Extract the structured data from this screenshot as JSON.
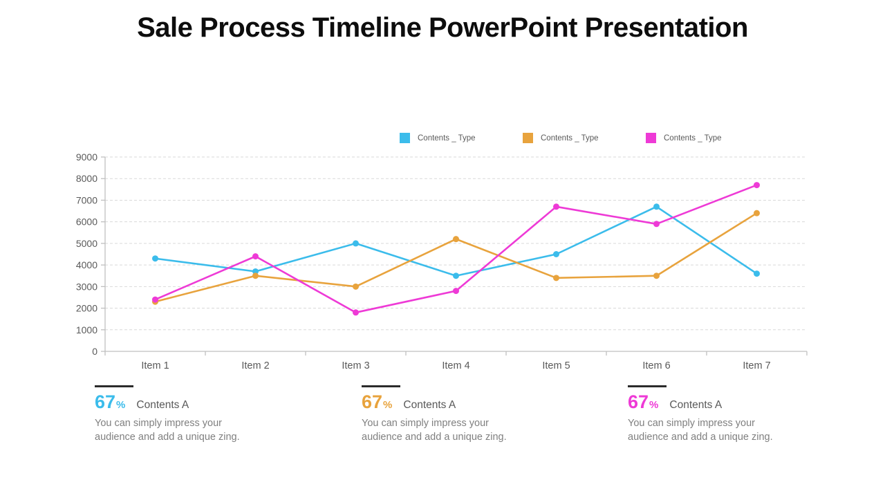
{
  "slide": {
    "title": "Sale Process Timeline PowerPoint Presentation"
  },
  "legend": [
    {
      "label": "Contents _ Type",
      "color": "#3bbceb"
    },
    {
      "label": "Contents _ Type",
      "color": "#e8a33d"
    },
    {
      "label": "Contents _ Type",
      "color": "#ee3ad6"
    }
  ],
  "chart_data": {
    "type": "line",
    "title": "",
    "xlabel": "",
    "ylabel": "",
    "categories": [
      "Item 1",
      "Item 2",
      "Item 3",
      "Item 4",
      "Item 5",
      "Item 6",
      "Item 7"
    ],
    "series": [
      {
        "name": "Contents _ Type",
        "color": "#3bbceb",
        "values": [
          4300,
          3700,
          5000,
          3500,
          4500,
          6700,
          3600
        ]
      },
      {
        "name": "Contents _ Type",
        "color": "#e8a33d",
        "values": [
          2300,
          3500,
          3000,
          5200,
          3400,
          3500,
          6400
        ]
      },
      {
        "name": "Contents _ Type",
        "color": "#ee3ad6",
        "values": [
          2400,
          4400,
          1800,
          2800,
          6700,
          5900,
          7700
        ]
      }
    ],
    "ylim": [
      0,
      9000
    ],
    "ytick_step": 1000,
    "ytick_labels": [
      "0",
      "1000",
      "2000",
      "3000",
      "4000",
      "5000",
      "6000",
      "7000",
      "8000",
      "9000"
    ],
    "grid": "horizontal-dashed",
    "legend_position": "top",
    "axis_color": "#bfbfbf",
    "grid_color": "#d9d9d9",
    "tick_label_color": "#595959"
  },
  "footer": {
    "blocks": [
      {
        "percent": "67",
        "percent_sign": "%",
        "heading": "Contents A",
        "body": "You can simply impress your audience and add a unique zing.",
        "color": "#3bbceb"
      },
      {
        "percent": "67",
        "percent_sign": "%",
        "heading": "Contents A",
        "body": "You can simply impress your audience and add a unique zing.",
        "color": "#e8a33d"
      },
      {
        "percent": "67",
        "percent_sign": "%",
        "heading": "Contents A",
        "body": "You can simply impress your audience and add a unique zing.",
        "color": "#ee3ad6"
      }
    ]
  }
}
